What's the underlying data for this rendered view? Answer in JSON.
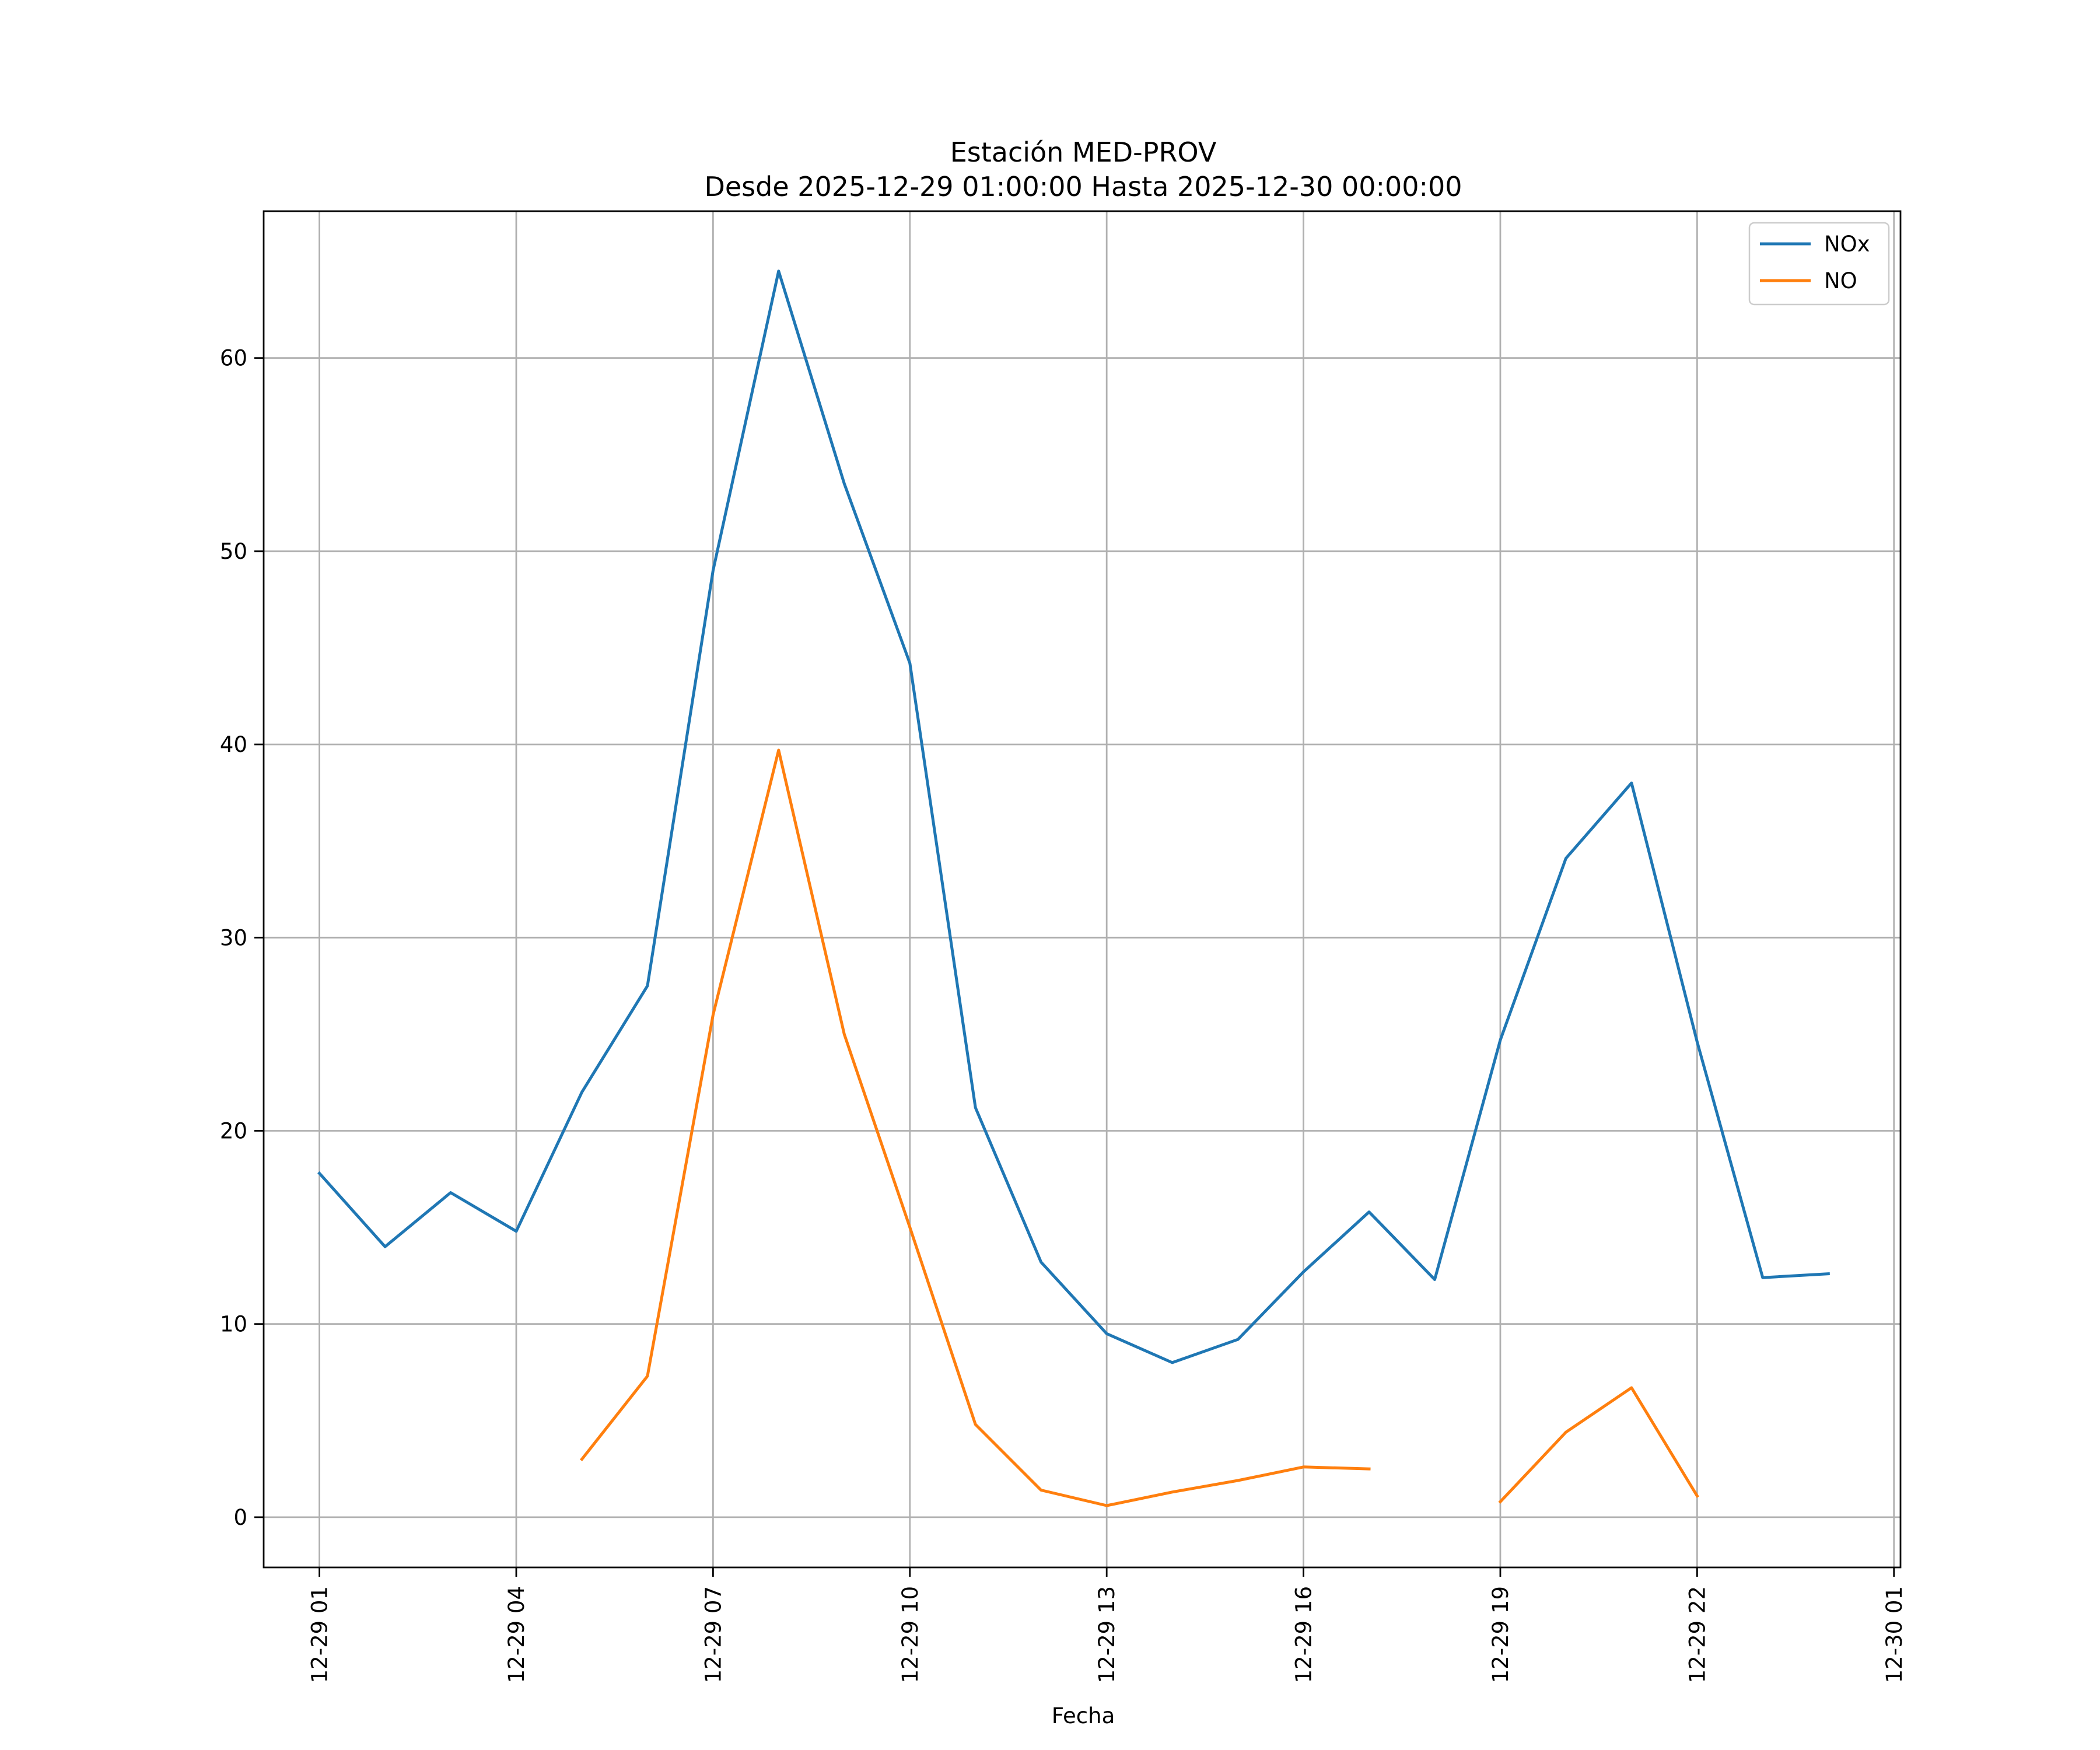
{
  "chart_data": {
    "type": "line",
    "title": "Estación MED-PROV",
    "subtitle": "Desde 2025-12-29 01:00:00 Hasta 2025-12-30 00:00:00",
    "xlabel": "Fecha",
    "ylabel": "",
    "x": [
      "2025-12-29 01:00",
      "2025-12-29 02:00",
      "2025-12-29 03:00",
      "2025-12-29 04:00",
      "2025-12-29 05:00",
      "2025-12-29 06:00",
      "2025-12-29 07:00",
      "2025-12-29 08:00",
      "2025-12-29 09:00",
      "2025-12-29 10:00",
      "2025-12-29 11:00",
      "2025-12-29 12:00",
      "2025-12-29 13:00",
      "2025-12-29 14:00",
      "2025-12-29 15:00",
      "2025-12-29 16:00",
      "2025-12-29 17:00",
      "2025-12-29 18:00",
      "2025-12-29 19:00",
      "2025-12-29 20:00",
      "2025-12-29 21:00",
      "2025-12-29 22:00",
      "2025-12-29 23:00",
      "2025-12-30 00:00"
    ],
    "series": [
      {
        "name": "NOx",
        "color": "#1f77b4",
        "values": [
          17.8,
          14.0,
          16.8,
          14.8,
          22.0,
          27.5,
          49.0,
          64.5,
          53.5,
          44.2,
          21.2,
          13.2,
          9.5,
          8.0,
          9.2,
          12.7,
          15.8,
          12.3,
          24.7,
          34.1,
          38.0,
          24.6,
          12.4,
          12.6
        ]
      },
      {
        "name": "NO",
        "color": "#ff7f0e",
        "values": [
          null,
          null,
          null,
          null,
          3.0,
          7.3,
          26.0,
          39.7,
          25.0,
          15.0,
          4.8,
          1.4,
          0.6,
          1.3,
          1.9,
          2.6,
          2.5,
          null,
          0.8,
          4.4,
          6.7,
          1.1,
          null,
          null
        ]
      }
    ],
    "xticks": [
      "12-29 01",
      "12-29 04",
      "12-29 07",
      "12-29 10",
      "12-29 13",
      "12-29 16",
      "12-29 19",
      "12-29 22",
      "12-30 01"
    ],
    "xlim": [
      "2025-12-29 00:09",
      "2025-12-30 01:06"
    ],
    "yticks": [
      0,
      10,
      20,
      30,
      40,
      50,
      60
    ],
    "ylim": [
      -2.6,
      67.6
    ],
    "grid": true,
    "legend": "top-right"
  }
}
